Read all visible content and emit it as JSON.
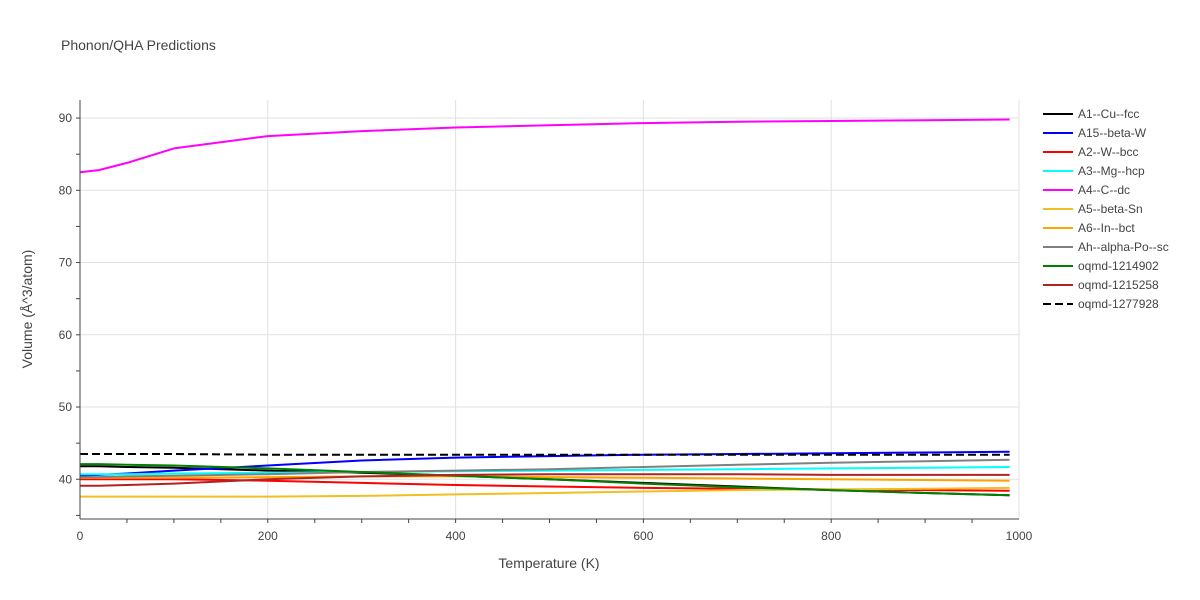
{
  "chart_data": {
    "type": "line",
    "title": "Phonon/QHA Predictions",
    "xlabel": "Temperature (K)",
    "ylabel": "Volume (Å^3/atom)",
    "xlim": [
      0,
      1000
    ],
    "ylim": [
      34.5,
      92.5
    ],
    "x_ticks": [
      0,
      200,
      400,
      600,
      800,
      1000
    ],
    "y_ticks": [
      40,
      50,
      60,
      70,
      80,
      90
    ],
    "grid": true,
    "legend_position": "right",
    "x": [
      0,
      20,
      50,
      100,
      200,
      300,
      400,
      500,
      600,
      700,
      800,
      900,
      990
    ],
    "series": [
      {
        "name": "A1--Cu--fcc",
        "color": "#000000",
        "dash": false,
        "values": [
          41.8,
          41.8,
          41.7,
          41.6,
          41.2,
          40.9,
          40.5,
          40.0,
          39.5,
          39.0,
          38.5,
          38.1,
          37.8
        ]
      },
      {
        "name": "A15--beta-W",
        "color": "#0000ff",
        "dash": false,
        "values": [
          40.5,
          40.6,
          40.8,
          41.2,
          41.9,
          42.6,
          43.0,
          43.2,
          43.4,
          43.5,
          43.6,
          43.7,
          43.8
        ]
      },
      {
        "name": "A2--W--bcc",
        "color": "#ff0000",
        "dash": false,
        "values": [
          40.0,
          40.0,
          40.0,
          40.0,
          39.8,
          39.5,
          39.2,
          39.0,
          38.8,
          38.7,
          38.6,
          38.5,
          38.4
        ]
      },
      {
        "name": "A3--Mg--hcp",
        "color": "#00ffff",
        "dash": false,
        "values": [
          40.7,
          40.7,
          40.7,
          40.8,
          40.9,
          41.0,
          41.1,
          41.2,
          41.3,
          41.4,
          41.5,
          41.6,
          41.7
        ]
      },
      {
        "name": "A4--C--dc",
        "color": "#ff00ff",
        "dash": false,
        "values": [
          82.5,
          82.8,
          83.8,
          85.8,
          87.5,
          88.2,
          88.7,
          89.0,
          89.3,
          89.5,
          89.6,
          89.7,
          89.8
        ]
      },
      {
        "name": "A5--beta-Sn",
        "color": "#f0c020",
        "dash": false,
        "values": [
          37.6,
          37.6,
          37.6,
          37.6,
          37.6,
          37.7,
          37.9,
          38.1,
          38.3,
          38.5,
          38.6,
          38.7,
          38.8
        ]
      },
      {
        "name": "A6--In--bct",
        "color": "#ffa500",
        "dash": false,
        "values": [
          40.2,
          40.2,
          40.2,
          40.2,
          40.3,
          40.4,
          40.4,
          40.3,
          40.2,
          40.1,
          40.0,
          39.9,
          39.8
        ]
      },
      {
        "name": "Ah--alpha-Po--sc",
        "color": "#808080",
        "dash": false,
        "values": [
          40.3,
          40.3,
          40.4,
          40.5,
          40.7,
          41.0,
          41.2,
          41.4,
          41.7,
          42.0,
          42.3,
          42.5,
          42.7
        ]
      },
      {
        "name": "oqmd-1214902",
        "color": "#008000",
        "dash": false,
        "values": [
          42.1,
          42.1,
          42.0,
          41.9,
          41.5,
          41.0,
          40.5,
          40.0,
          39.4,
          38.9,
          38.5,
          38.1,
          37.8
        ]
      },
      {
        "name": "oqmd-1215258",
        "color": "#b22222",
        "dash": false,
        "values": [
          39.1,
          39.1,
          39.2,
          39.4,
          40.0,
          40.4,
          40.6,
          40.7,
          40.7,
          40.7,
          40.6,
          40.6,
          40.6
        ]
      },
      {
        "name": "oqmd-1277928",
        "color": "#000000",
        "dash": true,
        "values": [
          43.5,
          43.5,
          43.5,
          43.5,
          43.4,
          43.4,
          43.4,
          43.4,
          43.4,
          43.4,
          43.4,
          43.4,
          43.4
        ]
      }
    ]
  }
}
